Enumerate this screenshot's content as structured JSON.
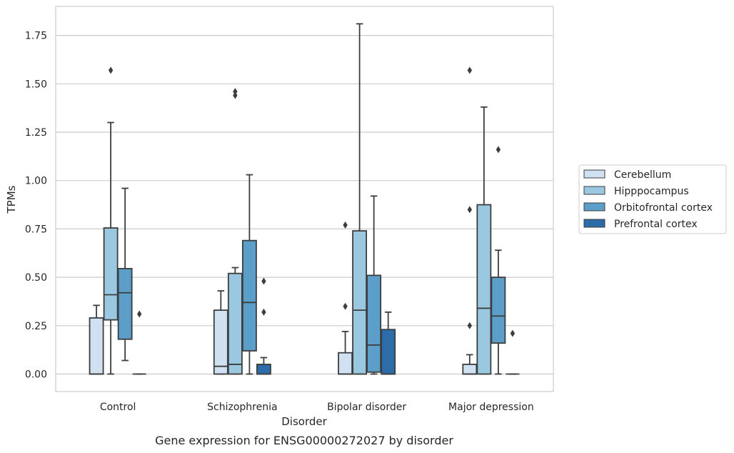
{
  "chart_data": {
    "type": "box",
    "title": "",
    "caption": "Gene expression for ENSG00000272027 by disorder",
    "xlabel": "Disorder",
    "ylabel": "TPMs",
    "ylim": [
      -0.09,
      1.91
    ],
    "yticks": [
      0.0,
      0.25,
      0.5,
      0.75,
      1.0,
      1.25,
      1.5,
      1.75
    ],
    "ytick_labels": [
      "0.00",
      "0.25",
      "0.50",
      "0.75",
      "1.00",
      "1.25",
      "1.50",
      "1.75"
    ],
    "grid": true,
    "legend_position": "right",
    "categories": [
      "Control",
      "Schizophrenia",
      "Bipolar disorder",
      "Major depression"
    ],
    "series": [
      {
        "name": "Cerebellum",
        "color": "#d0e1f2",
        "boxes": [
          {
            "q1": 0.0,
            "median": 0.0,
            "q3": 0.29,
            "whislo": 0.0,
            "whishi": 0.355,
            "fliers": []
          },
          {
            "q1": 0.0,
            "median": 0.04,
            "q3": 0.33,
            "whislo": 0.0,
            "whishi": 0.43,
            "fliers": []
          },
          {
            "q1": 0.0,
            "median": 0.0,
            "q3": 0.11,
            "whislo": 0.0,
            "whishi": 0.22,
            "fliers": [
              0.35,
              0.77
            ]
          },
          {
            "q1": 0.0,
            "median": 0.0,
            "q3": 0.05,
            "whislo": 0.0,
            "whishi": 0.1,
            "fliers": [
              0.25,
              0.85,
              1.57
            ]
          }
        ]
      },
      {
        "name": "Hipppocampus",
        "color": "#9ac8e0",
        "boxes": [
          {
            "q1": 0.28,
            "median": 0.41,
            "q3": 0.755,
            "whislo": 0.0,
            "whishi": 1.3,
            "fliers": [
              1.57
            ]
          },
          {
            "q1": 0.0,
            "median": 0.05,
            "q3": 0.52,
            "whislo": 0.0,
            "whishi": 0.55,
            "fliers": [
              1.44,
              1.46
            ]
          },
          {
            "q1": 0.0,
            "median": 0.33,
            "q3": 0.74,
            "whislo": 0.0,
            "whishi": 1.81,
            "fliers": []
          },
          {
            "q1": 0.0,
            "median": 0.34,
            "q3": 0.875,
            "whislo": 0.0,
            "whishi": 1.38,
            "fliers": []
          }
        ]
      },
      {
        "name": "Orbitofrontal cortex",
        "color": "#5a9ec9",
        "boxes": [
          {
            "q1": 0.18,
            "median": 0.42,
            "q3": 0.545,
            "whislo": 0.07,
            "whishi": 0.96,
            "fliers": []
          },
          {
            "q1": 0.12,
            "median": 0.37,
            "q3": 0.69,
            "whislo": 0.0,
            "whishi": 1.03,
            "fliers": []
          },
          {
            "q1": 0.01,
            "median": 0.15,
            "q3": 0.51,
            "whislo": 0.0,
            "whishi": 0.92,
            "fliers": []
          },
          {
            "q1": 0.16,
            "median": 0.3,
            "q3": 0.5,
            "whislo": 0.0,
            "whishi": 0.64,
            "fliers": [
              1.16
            ]
          }
        ]
      },
      {
        "name": "Prefrontal cortex",
        "color": "#2b6ca9",
        "boxes": [
          {
            "q1": 0.0,
            "median": 0.0,
            "q3": 0.0,
            "whislo": 0.0,
            "whishi": 0.0,
            "fliers": [
              0.31
            ]
          },
          {
            "q1": 0.0,
            "median": 0.0,
            "q3": 0.05,
            "whislo": 0.0,
            "whishi": 0.085,
            "fliers": [
              0.32,
              0.48
            ]
          },
          {
            "q1": 0.0,
            "median": 0.0,
            "q3": 0.23,
            "whislo": 0.0,
            "whishi": 0.32,
            "fliers": []
          },
          {
            "q1": 0.0,
            "median": 0.0,
            "q3": 0.0,
            "whislo": 0.0,
            "whishi": 0.0,
            "fliers": [
              0.21
            ]
          }
        ]
      }
    ]
  }
}
